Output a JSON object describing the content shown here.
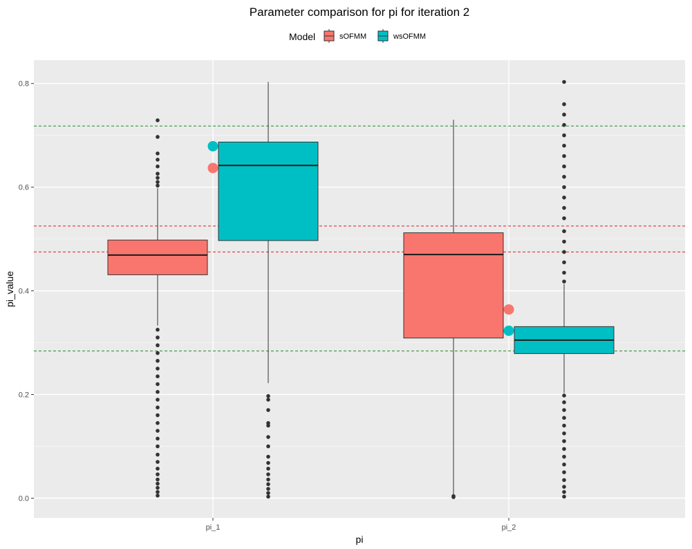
{
  "chart_data": {
    "type": "boxplot",
    "title": "Parameter comparison for pi for iteration 2",
    "xlabel": "pi",
    "ylabel": "pi_value",
    "ylim": [
      -0.038,
      0.845
    ],
    "yticks": [
      0.0,
      0.2,
      0.4,
      0.6,
      0.8
    ],
    "categories": [
      "pi_1",
      "pi_2"
    ],
    "legend": {
      "title": "Model",
      "placement": "top"
    },
    "grid": true,
    "series": [
      {
        "name": "sOFMM",
        "color": "#F8766D",
        "boxes": [
          {
            "category": "pi_1",
            "q1": 0.431,
            "median": 0.469,
            "q3": 0.498,
            "whisker_low": 0.333,
            "whisker_high": 0.598,
            "outliers_low": [
              0.005,
              0.012,
              0.02,
              0.028,
              0.036,
              0.046,
              0.057,
              0.07,
              0.084,
              0.1,
              0.115,
              0.13,
              0.145,
              0.16,
              0.175,
              0.19,
              0.205,
              0.22,
              0.235,
              0.25,
              0.265,
              0.28,
              0.295,
              0.31,
              0.325
            ],
            "outliers_high": [
              0.603,
              0.61,
              0.618,
              0.626,
              0.64,
              0.653,
              0.665,
              0.697,
              0.729
            ],
            "true_value": 0.637
          },
          {
            "category": "pi_2",
            "q1": 0.309,
            "median": 0.47,
            "q3": 0.512,
            "whisker_low": 0.005,
            "whisker_high": 0.73,
            "outliers_low": [
              0.002,
              0.004
            ],
            "outliers_high": [],
            "true_value": 0.364
          }
        ]
      },
      {
        "name": "wsOFMM",
        "color": "#00BFC4",
        "boxes": [
          {
            "category": "pi_1",
            "q1": 0.497,
            "median": 0.642,
            "q3": 0.687,
            "whisker_low": 0.222,
            "whisker_high": 0.803,
            "outliers_low": [
              0.003,
              0.01,
              0.018,
              0.027,
              0.036,
              0.046,
              0.057,
              0.068,
              0.08,
              0.1,
              0.118,
              0.14,
              0.145,
              0.17,
              0.19,
              0.197
            ],
            "outliers_high": [],
            "true_value": 0.679
          },
          {
            "category": "pi_2",
            "q1": 0.279,
            "median": 0.305,
            "q3": 0.331,
            "whisker_low": 0.203,
            "whisker_high": 0.413,
            "outliers_low": [
              0.003,
              0.012,
              0.022,
              0.035,
              0.05,
              0.065,
              0.08,
              0.095,
              0.11,
              0.125,
              0.14,
              0.155,
              0.17,
              0.185,
              0.198
            ],
            "outliers_high": [
              0.418,
              0.435,
              0.455,
              0.475,
              0.495,
              0.515,
              0.54,
              0.56,
              0.58,
              0.6,
              0.62,
              0.64,
              0.66,
              0.68,
              0.7,
              0.72,
              0.74,
              0.76,
              0.803
            ],
            "true_value": 0.323
          }
        ]
      }
    ],
    "reference_lines": [
      {
        "y": 0.718,
        "color": "#228B22"
      },
      {
        "y": 0.284,
        "color": "#228B22"
      },
      {
        "y": 0.525,
        "color": "#E41A1C"
      },
      {
        "y": 0.475,
        "color": "#E41A1C"
      }
    ]
  }
}
